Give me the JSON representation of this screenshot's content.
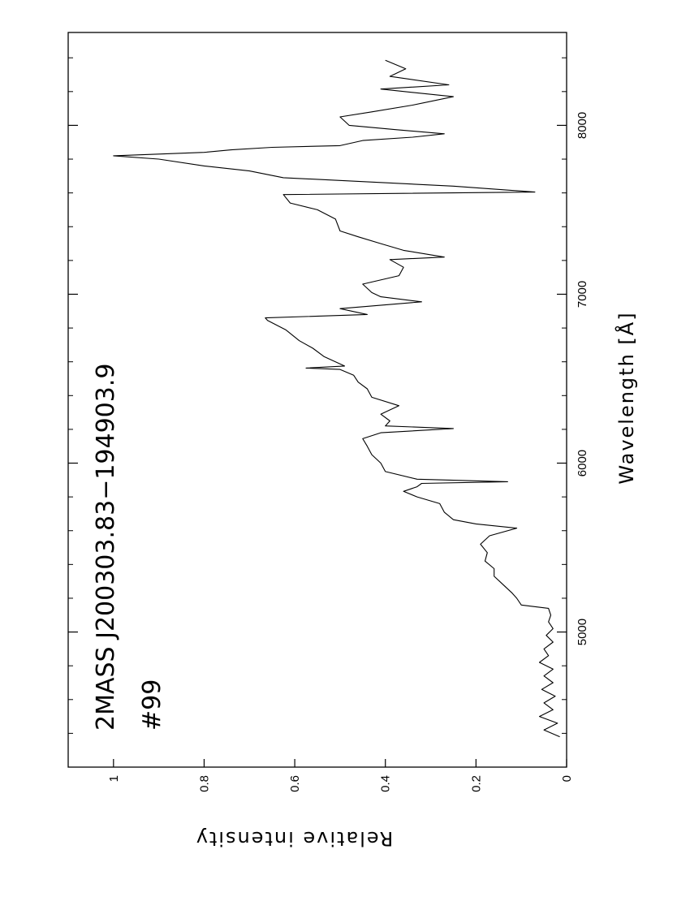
{
  "chart_data": {
    "type": "line",
    "title": "2MASS J200303.83−194903.9",
    "subtitle": "#99",
    "x_label": "Wavelength  [Å]",
    "y_label": "Relative intensity",
    "color": "#000000",
    "x": [
      4380,
      4420,
      4460,
      4500,
      4540,
      4580,
      4620,
      4660,
      4700,
      4740,
      4780,
      4820,
      4860,
      4900,
      4940,
      4980,
      5020,
      5060,
      5100,
      5140,
      5160,
      5200,
      5230,
      5280,
      5330,
      5375,
      5420,
      5470,
      5520,
      5570,
      5615,
      5640,
      5665,
      5710,
      5760,
      5800,
      5833,
      5860,
      5880,
      5890,
      5905,
      5950,
      6000,
      6050,
      6100,
      6145,
      6180,
      6205,
      6220,
      6250,
      6290,
      6340,
      6390,
      6440,
      6480,
      6520,
      6555,
      6563,
      6575,
      6630,
      6680,
      6725,
      6790,
      6845,
      6860,
      6880,
      6915,
      6955,
      6985,
      7010,
      7060,
      7110,
      7160,
      7205,
      7220,
      7260,
      7300,
      7340,
      7375,
      7445,
      7500,
      7540,
      7590,
      7605,
      7640,
      7690,
      7730,
      7760,
      7800,
      7820,
      7840,
      7855,
      7870,
      7880,
      7910,
      7930,
      7950,
      7975,
      8000,
      8050,
      8080,
      8120,
      8170,
      8215,
      8240,
      8290,
      8335,
      8385
    ],
    "values": [
      0.015,
      0.05,
      0.02,
      0.06,
      0.03,
      0.05,
      0.025,
      0.055,
      0.03,
      0.05,
      0.03,
      0.06,
      0.04,
      0.05,
      0.03,
      0.045,
      0.03,
      0.04,
      0.035,
      0.04,
      0.1,
      0.11,
      0.12,
      0.14,
      0.16,
      0.16,
      0.18,
      0.175,
      0.19,
      0.17,
      0.11,
      0.2,
      0.25,
      0.27,
      0.28,
      0.33,
      0.36,
      0.33,
      0.32,
      0.13,
      0.33,
      0.4,
      0.41,
      0.43,
      0.44,
      0.45,
      0.41,
      0.25,
      0.4,
      0.39,
      0.41,
      0.37,
      0.43,
      0.44,
      0.46,
      0.47,
      0.5,
      0.575,
      0.49,
      0.535,
      0.56,
      0.59,
      0.62,
      0.66,
      0.665,
      0.44,
      0.5,
      0.32,
      0.41,
      0.43,
      0.45,
      0.37,
      0.36,
      0.39,
      0.27,
      0.36,
      0.41,
      0.46,
      0.5,
      0.51,
      0.55,
      0.61,
      0.625,
      0.07,
      0.25,
      0.625,
      0.7,
      0.8,
      0.9,
      1.0,
      0.8,
      0.74,
      0.65,
      0.5,
      0.45,
      0.34,
      0.27,
      0.38,
      0.48,
      0.5,
      0.43,
      0.34,
      0.25,
      0.41,
      0.26,
      0.39,
      0.355,
      0.4
    ],
    "xlim": [
      4200,
      8550
    ],
    "ylim": [
      0,
      1.1
    ],
    "xticks": [
      5000,
      6000,
      7000,
      8000
    ],
    "xminorticks": [
      4400,
      4600,
      4800,
      5200,
      5400,
      5600,
      5800,
      6200,
      6400,
      6600,
      6800,
      7200,
      7400,
      7600,
      7800,
      8200,
      8400
    ],
    "yticks": [
      0,
      0.2,
      0.4,
      0.6,
      0.8,
      1
    ]
  }
}
